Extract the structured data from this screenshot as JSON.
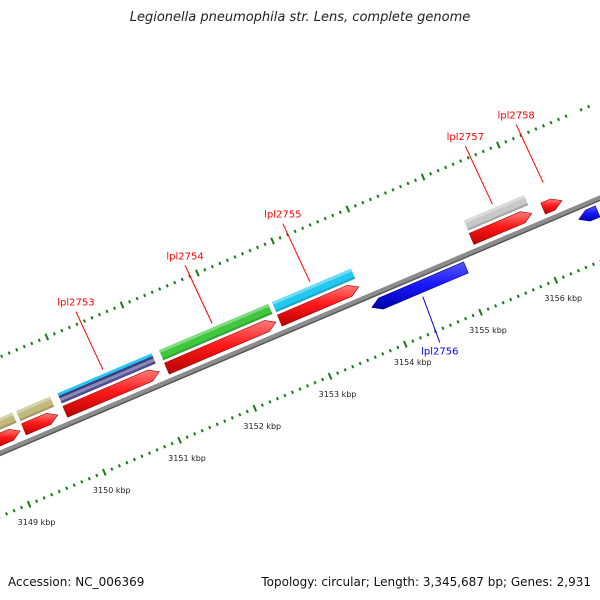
{
  "title": "Legionella pneumophila str. Lens, complete genome",
  "footer": {
    "accession": "Accession: NC_006369",
    "topology": "Topology: circular",
    "length": "Length: 3,345,687 bp",
    "genes": "Genes: 2,931"
  },
  "colors": {
    "forward": "#ff0000",
    "reverse": "#0000ff",
    "backbone": "#8c8c8c",
    "tick": "#1a7a1a",
    "feature_olive": "#c2b97d",
    "feature_green": "#3fc83f",
    "feature_cyan": "#22c8f0",
    "feature_gray": "#c8c8c8",
    "feature_multi": [
      "#4d4d9a",
      "#8a8aaa",
      "#3c3c8a",
      "#22c8f0"
    ]
  },
  "ruler": {
    "unit": "kbp",
    "ticks": [
      {
        "kbp": 3149,
        "label": "3149 kbp"
      },
      {
        "kbp": 3150,
        "label": "3150 kbp"
      },
      {
        "kbp": 3151,
        "label": "3151 kbp"
      },
      {
        "kbp": 3152,
        "label": "3152 kbp"
      },
      {
        "kbp": 3153,
        "label": "3153 kbp"
      },
      {
        "kbp": 3154,
        "label": "3154 kbp"
      },
      {
        "kbp": 3155,
        "label": "3155 kbp"
      },
      {
        "kbp": 3156,
        "label": "3156 kbp"
      }
    ]
  },
  "genes": [
    {
      "label": "",
      "strand": "+",
      "start_kbp": 3148.9,
      "end_kbp": 3149.25,
      "color": "forward"
    },
    {
      "label": "",
      "strand": "+",
      "start_kbp": 3149.3,
      "end_kbp": 3149.75,
      "color": "forward"
    },
    {
      "label": "lpl2753",
      "strand": "+",
      "start_kbp": 3149.85,
      "end_kbp": 3151.1,
      "color": "forward"
    },
    {
      "label": "lpl2754",
      "strand": "+",
      "start_kbp": 3151.2,
      "end_kbp": 3152.65,
      "color": "forward"
    },
    {
      "label": "lpl2755",
      "strand": "+",
      "start_kbp": 3152.7,
      "end_kbp": 3153.75,
      "color": "forward"
    },
    {
      "label": "lpl2756",
      "strand": "-",
      "start_kbp": 3153.8,
      "end_kbp": 3155.05,
      "color": "reverse"
    },
    {
      "label": "lpl2757",
      "strand": "+",
      "start_kbp": 3155.25,
      "end_kbp": 3156.05,
      "color": "forward"
    },
    {
      "label": "lpl2758",
      "strand": "+",
      "start_kbp": 3156.2,
      "end_kbp": 3156.45,
      "color": "forward"
    },
    {
      "label": "",
      "strand": "-",
      "start_kbp": 3156.55,
      "end_kbp": 3156.8,
      "color": "reverse"
    }
  ],
  "features": [
    {
      "start_kbp": 3148.9,
      "end_kbp": 3149.25,
      "color": "feature_olive"
    },
    {
      "start_kbp": 3149.3,
      "end_kbp": 3149.75,
      "color": "feature_olive"
    },
    {
      "start_kbp": 3149.85,
      "end_kbp": 3151.1,
      "color": "feature_multi"
    },
    {
      "start_kbp": 3151.2,
      "end_kbp": 3152.65,
      "color": "feature_green"
    },
    {
      "start_kbp": 3152.7,
      "end_kbp": 3153.75,
      "color": "feature_cyan"
    },
    {
      "start_kbp": 3155.25,
      "end_kbp": 3156.05,
      "color": "feature_gray"
    }
  ]
}
